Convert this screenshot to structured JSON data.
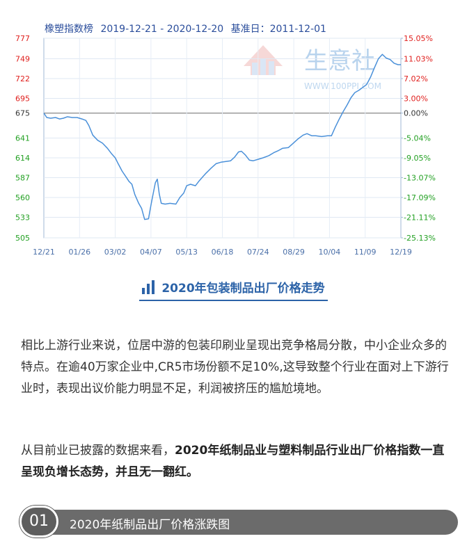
{
  "chart_header": {
    "name": "橡塑指数榜",
    "range": "2019-12-21 - 2020-12-20",
    "base": "基准日：2011-12-01"
  },
  "watermark": {
    "text": "生意社",
    "url": "WWW.100PPI.COM"
  },
  "chart_data": {
    "type": "line",
    "title": "橡塑指数榜",
    "xlabel": "",
    "ylabel": "",
    "ylim": [
      505,
      777
    ],
    "baseline": 675,
    "left_ticks": [
      777,
      749,
      722,
      695,
      675,
      641,
      614,
      587,
      560,
      533,
      505
    ],
    "right_ticks": [
      "15.05%",
      "11.03%",
      "7.02%",
      "3.00%",
      "0.00%",
      "-5.04%",
      "-9.05%",
      "-13.07%",
      "-17.09%",
      "-21.11%",
      "-25.13%"
    ],
    "x_ticks": [
      "12/21",
      "01/26",
      "03/02",
      "04/07",
      "05/13",
      "06/18",
      "07/24",
      "08/29",
      "10/04",
      "11/09",
      "12/19"
    ],
    "grid": true,
    "colors": {
      "line": "#4a90d9",
      "left_axis": "#22a022",
      "right_axis": "#e0201e",
      "baseline": "#888888"
    },
    "series": [
      {
        "values": [
          [
            "2019-12-21",
            675
          ],
          [
            "2019-12-24",
            669
          ],
          [
            "2019-12-28",
            668
          ],
          [
            "2020-01-02",
            669
          ],
          [
            "2020-01-06",
            667
          ],
          [
            "2020-01-10",
            668
          ],
          [
            "2020-01-14",
            670
          ],
          [
            "2020-01-19",
            669
          ],
          [
            "2020-01-24",
            669
          ],
          [
            "2020-01-29",
            667
          ],
          [
            "2020-02-02",
            665
          ],
          [
            "2020-02-05",
            658
          ],
          [
            "2020-02-09",
            645
          ],
          [
            "2020-02-14",
            638
          ],
          [
            "2020-02-19",
            634
          ],
          [
            "2020-02-24",
            627
          ],
          [
            "2020-02-28",
            620
          ],
          [
            "2020-03-03",
            614
          ],
          [
            "2020-03-06",
            606
          ],
          [
            "2020-03-10",
            596
          ],
          [
            "2020-03-14",
            588
          ],
          [
            "2020-03-17",
            582
          ],
          [
            "2020-03-20",
            578
          ],
          [
            "2020-03-23",
            564
          ],
          [
            "2020-03-27",
            552
          ],
          [
            "2020-03-30",
            545
          ],
          [
            "2020-04-02",
            530
          ],
          [
            "2020-04-06",
            531
          ],
          [
            "2020-04-08",
            546
          ],
          [
            "2020-04-10",
            560
          ],
          [
            "2020-04-13",
            580
          ],
          [
            "2020-04-15",
            585
          ],
          [
            "2020-04-17",
            565
          ],
          [
            "2020-04-19",
            552
          ],
          [
            "2020-04-23",
            551
          ],
          [
            "2020-04-28",
            552
          ],
          [
            "2020-05-04",
            551
          ],
          [
            "2020-05-08",
            560
          ],
          [
            "2020-05-12",
            566
          ],
          [
            "2020-05-15",
            576
          ],
          [
            "2020-05-19",
            578
          ],
          [
            "2020-05-24",
            576
          ],
          [
            "2020-05-28",
            583
          ],
          [
            "2020-06-03",
            592
          ],
          [
            "2020-06-09",
            600
          ],
          [
            "2020-06-14",
            606
          ],
          [
            "2020-06-19",
            608
          ],
          [
            "2020-06-24",
            609
          ],
          [
            "2020-06-29",
            610
          ],
          [
            "2020-07-03",
            615
          ],
          [
            "2020-07-07",
            622
          ],
          [
            "2020-07-10",
            623
          ],
          [
            "2020-07-14",
            618
          ],
          [
            "2020-07-18",
            611
          ],
          [
            "2020-07-22",
            610
          ],
          [
            "2020-07-27",
            612
          ],
          [
            "2020-08-01",
            614
          ],
          [
            "2020-08-07",
            617
          ],
          [
            "2020-08-12",
            621
          ],
          [
            "2020-08-17",
            624
          ],
          [
            "2020-08-21",
            627
          ],
          [
            "2020-08-27",
            628
          ],
          [
            "2020-09-01",
            634
          ],
          [
            "2020-09-06",
            640
          ],
          [
            "2020-09-11",
            645
          ],
          [
            "2020-09-15",
            647
          ],
          [
            "2020-09-20",
            644
          ],
          [
            "2020-09-24",
            644
          ],
          [
            "2020-09-30",
            643
          ],
          [
            "2020-10-06",
            644
          ],
          [
            "2020-10-10",
            644
          ],
          [
            "2020-10-14",
            656
          ],
          [
            "2020-10-18",
            667
          ],
          [
            "2020-10-22",
            677
          ],
          [
            "2020-10-26",
            686
          ],
          [
            "2020-10-30",
            696
          ],
          [
            "2020-11-03",
            703
          ],
          [
            "2020-11-07",
            706
          ],
          [
            "2020-11-11",
            710
          ],
          [
            "2020-11-15",
            714
          ],
          [
            "2020-11-19",
            724
          ],
          [
            "2020-11-23",
            737
          ],
          [
            "2020-11-27",
            749
          ],
          [
            "2020-12-01",
            755
          ],
          [
            "2020-12-05",
            750
          ],
          [
            "2020-12-09",
            748
          ],
          [
            "2020-12-13",
            743
          ],
          [
            "2020-12-17",
            741
          ],
          [
            "2020-12-20",
            741
          ]
        ]
      }
    ]
  },
  "section_heading": "2020年包装制品出厂价格走势",
  "paragraph1": "相比上游行业来说，位居中游的包装印刷业呈现出竞争格局分散，中小企业众多的特点。在逾40万家企业中,CR5市场份额不足10%,这导致整个行业在面对上下游行业时，表现出议价能力明显不足，利润被挤压的尴尬境地。",
  "paragraph2_plain": "从目前业已披露的数据来看，",
  "paragraph2_bold": "2020年纸制品业与塑料制品行业出厂价格指数一直呈现负增长态势，并且无一翻红。",
  "banner": {
    "number": "01",
    "title": "2020年纸制品出厂价格涨跌图"
  }
}
